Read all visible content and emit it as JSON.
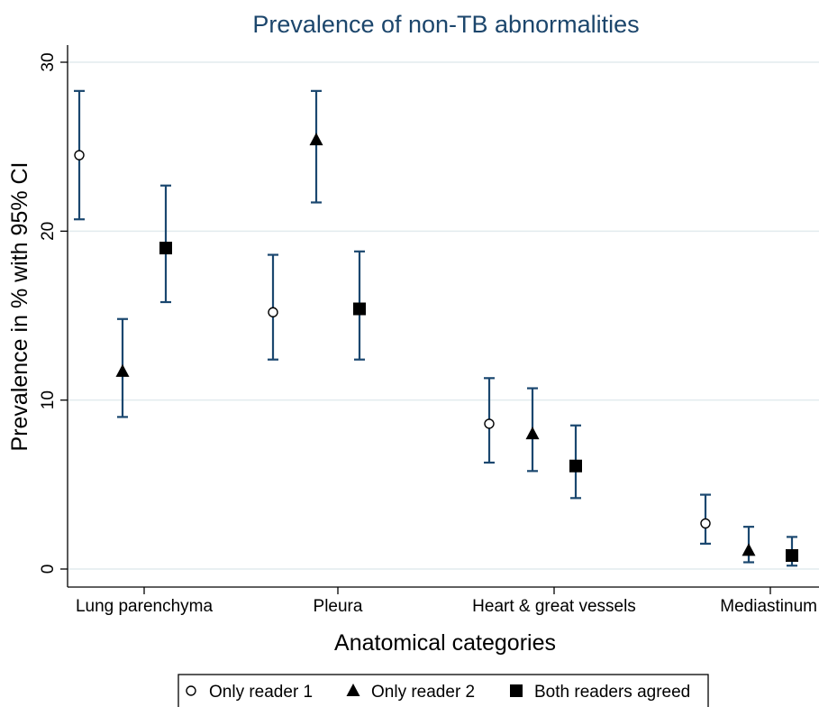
{
  "chart_data": {
    "type": "scatter",
    "title": "Prevalence of non-TB abnormalities",
    "xlabel": "Anatomical categories",
    "ylabel": "Prevalence in % with 95% CI",
    "ylim": [
      0,
      30
    ],
    "yticks": [
      0,
      10,
      20,
      30
    ],
    "grid": true,
    "legend_position": "bottom",
    "categories": [
      "Lung parenchyma",
      "Pleura",
      "Heart & great vessels",
      "Mediastinum"
    ],
    "series": [
      {
        "name": "Only reader 1",
        "marker": "hollow-circle",
        "values": [
          24.5,
          15.2,
          8.6,
          2.7
        ],
        "ci_low": [
          20.7,
          12.4,
          6.3,
          1.5
        ],
        "ci_high": [
          28.3,
          18.6,
          11.3,
          4.4
        ]
      },
      {
        "name": "Only reader 2",
        "marker": "triangle",
        "values": [
          11.7,
          25.4,
          8.0,
          1.1
        ],
        "ci_low": [
          9.0,
          21.7,
          5.8,
          0.4
        ],
        "ci_high": [
          14.8,
          28.3,
          10.7,
          2.5
        ]
      },
      {
        "name": "Both readers agreed",
        "marker": "square",
        "values": [
          19.0,
          15.4,
          6.1,
          0.8
        ],
        "ci_low": [
          15.8,
          12.4,
          4.2,
          0.2
        ],
        "ci_high": [
          22.7,
          18.8,
          8.5,
          1.9
        ]
      }
    ],
    "colors": {
      "ci": "#1a476f",
      "grid": "#e2ebee",
      "title": "#1c466c",
      "marker": "#000000"
    }
  }
}
